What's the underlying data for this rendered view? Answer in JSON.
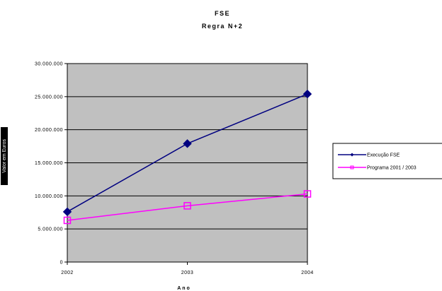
{
  "chart_data": {
    "type": "line",
    "title": "FSE",
    "subtitle": "Regra N+2",
    "xlabel": "Ano",
    "ylabel": "Valor em Euros",
    "categories": [
      "2002",
      "2003",
      "2004"
    ],
    "yticks": [
      "0",
      "5.000.000",
      "10.000.000",
      "15.000.000",
      "20.000.000",
      "25.000.000",
      "30.000.000"
    ],
    "ylim": [
      0,
      30000000
    ],
    "grid": true,
    "legend_position": "right",
    "series": [
      {
        "name": "Execução FSE",
        "values": [
          7600000,
          17900000,
          25400000
        ],
        "color": "#000080",
        "marker": "diamond"
      },
      {
        "name": "Programa 2001 / 2003",
        "values": [
          6300000,
          8500000,
          10300000
        ],
        "color": "#ff00ff",
        "marker": "square"
      }
    ],
    "plot_background": "#c0c0c0"
  }
}
